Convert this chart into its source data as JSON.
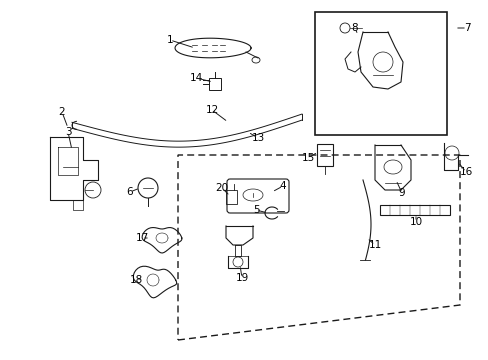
{
  "background_color": "#ffffff",
  "line_color": "#1a1a1a",
  "figsize": [
    4.89,
    3.6
  ],
  "dpi": 100,
  "label_fontsize": 7.5
}
